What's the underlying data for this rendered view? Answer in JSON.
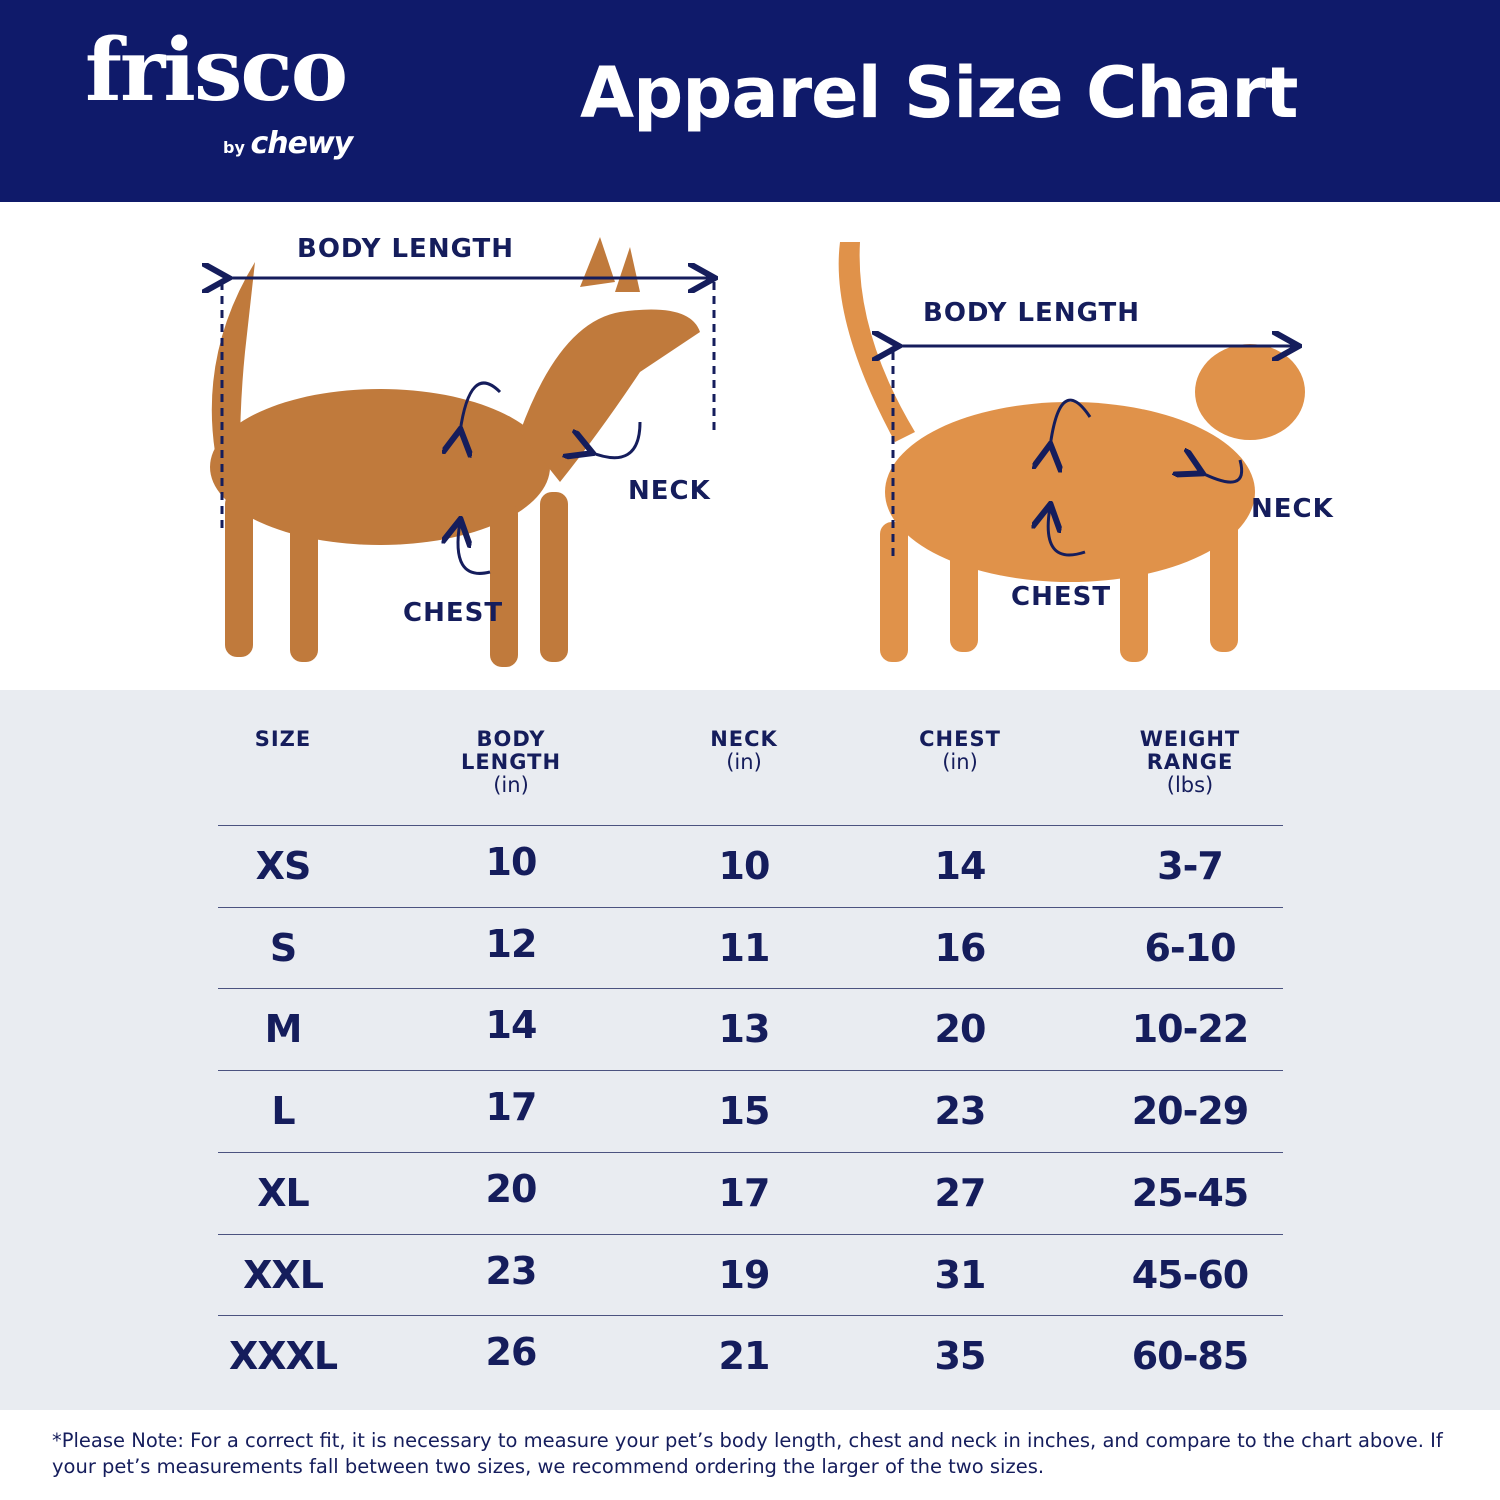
{
  "header": {
    "logo": {
      "main": "frisco",
      "by": "by",
      "brand": "chewy"
    },
    "title": "Apparel Size Chart"
  },
  "diagram": {
    "dog": {
      "body_length": "BODY LENGTH",
      "neck": "NECK",
      "chest": "CHEST"
    },
    "cat": {
      "body_length": "BODY LENGTH",
      "neck": "NECK",
      "chest": "CHEST"
    },
    "colors": {
      "arrow": "#151d5c",
      "dog": "#c07a3c",
      "cat": "#e0924a"
    }
  },
  "table": {
    "headers": [
      {
        "title": "SIZE",
        "unit": ""
      },
      {
        "title": "BODY LENGTH",
        "unit": "(in)"
      },
      {
        "title": "NECK",
        "unit": "(in)"
      },
      {
        "title": "CHEST",
        "unit": "(in)"
      },
      {
        "title": "WEIGHT RANGE",
        "unit": "(lbs)"
      }
    ],
    "rows": [
      [
        "XS",
        "10",
        "10",
        "14",
        "3-7"
      ],
      [
        "S",
        "12",
        "11",
        "16",
        "6-10"
      ],
      [
        "M",
        "14",
        "13",
        "20",
        "10-22"
      ],
      [
        "L",
        "17",
        "15",
        "23",
        "20-29"
      ],
      [
        "XL",
        "20",
        "17",
        "27",
        "25-45"
      ],
      [
        "XXL",
        "23",
        "19",
        "31",
        "45-60"
      ],
      [
        "XXXL",
        "26",
        "21",
        "35",
        "60-85"
      ]
    ]
  },
  "footer": {
    "note": "*Please Note: For a correct fit, it is necessary to measure your pet’s body length, chest and neck in inches, and compare to the chart above. If your pet’s measurements fall between two sizes, we recommend ordering the larger of the two sizes."
  },
  "colors": {
    "header_bg": "#0f1a6a",
    "text": "#151d5c",
    "table_bg": "#e9ecf1"
  }
}
